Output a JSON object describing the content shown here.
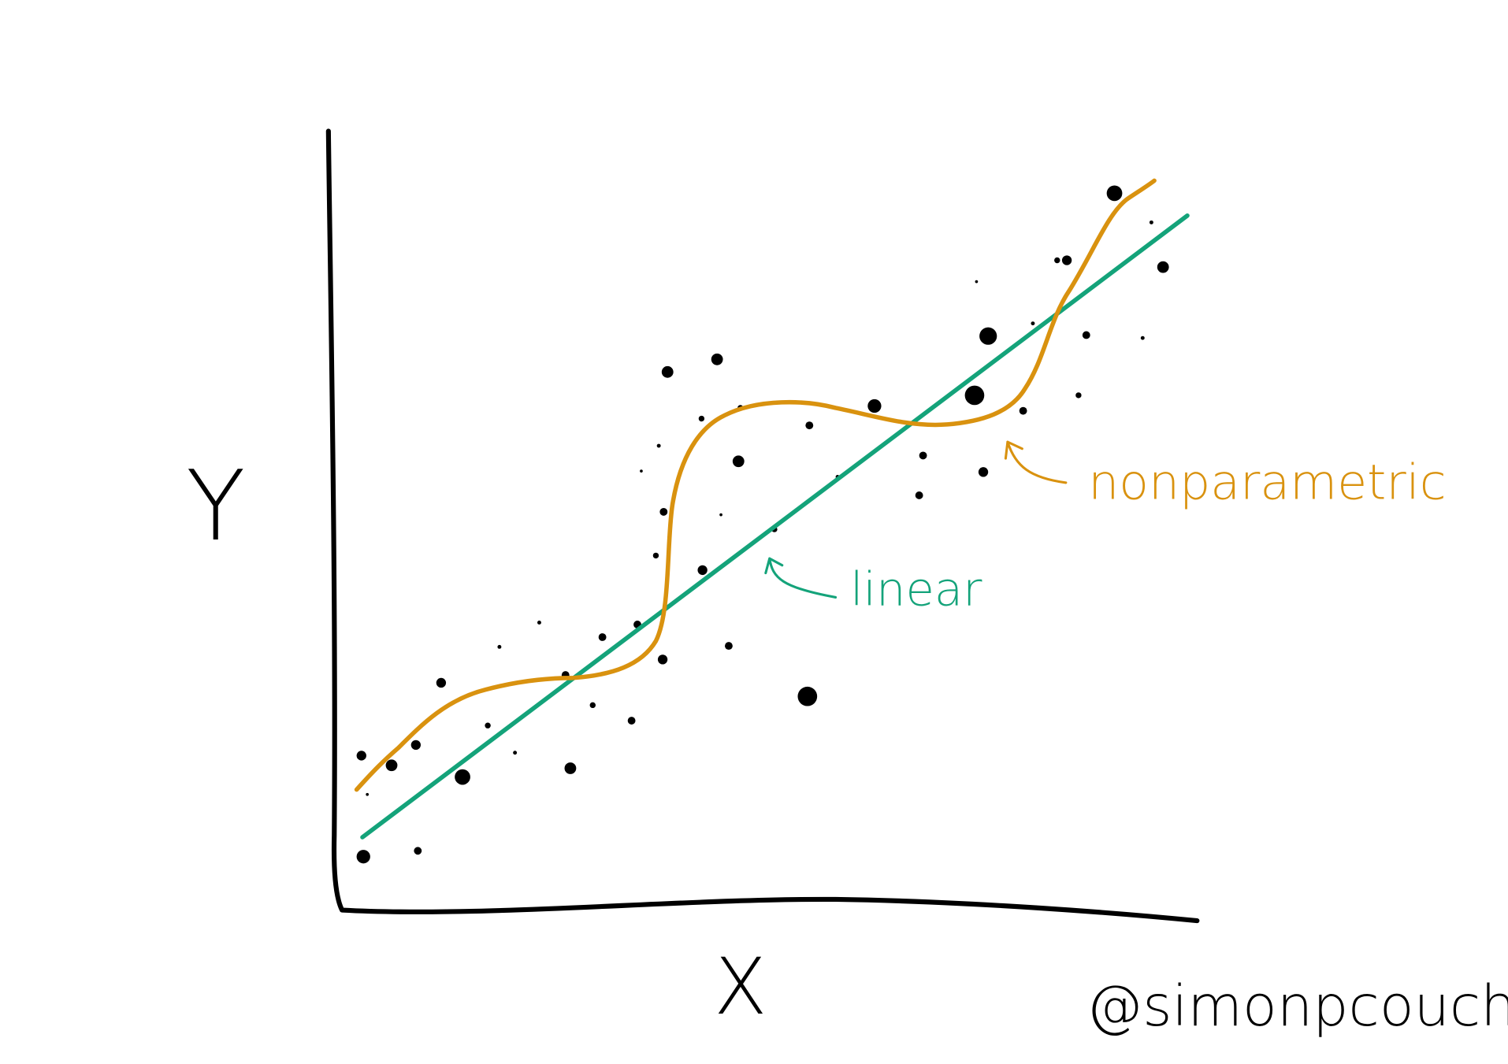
{
  "axis_labels": {
    "y": "Y",
    "x": "X"
  },
  "annotations": {
    "linear": "linear",
    "nonparametric": "nonparametric"
  },
  "signature": "@simonpcouch"
}
